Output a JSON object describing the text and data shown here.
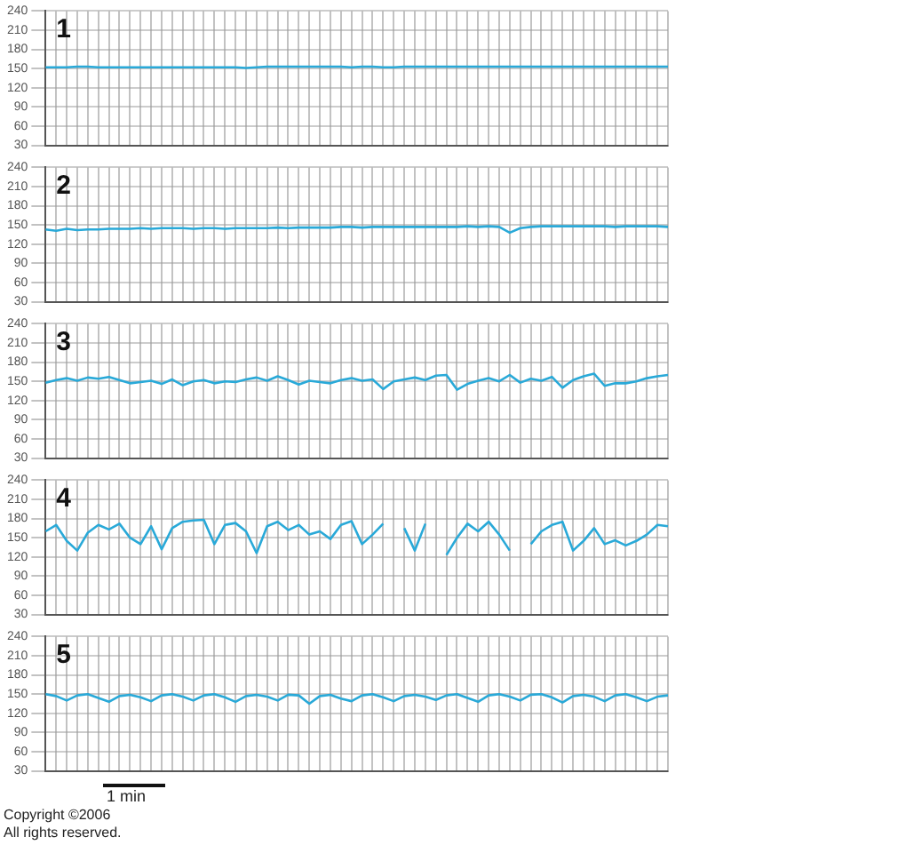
{
  "chart_data": [
    {
      "type": "line",
      "title": "1",
      "categories": [
        null,
        null,
        null,
        null,
        null,
        null,
        null,
        null,
        null,
        null,
        null,
        null,
        null,
        null,
        null,
        null,
        null,
        null,
        null,
        null,
        null,
        null,
        null,
        null,
        null,
        null,
        null,
        null,
        null,
        null,
        null,
        null,
        null,
        null,
        null,
        null,
        null,
        null,
        null,
        null,
        null,
        null,
        null,
        null,
        null,
        null,
        null,
        null,
        null,
        null,
        null,
        null,
        null,
        null,
        null,
        null,
        null,
        null,
        null,
        null
      ],
      "ylim": [
        30,
        240
      ],
      "yticks": [
        30,
        60,
        90,
        120,
        150,
        180,
        210,
        240
      ],
      "grid": true,
      "tick_labels": "y",
      "series": [
        {
          "color": "#29a9d8",
          "values": [
            152,
            152,
            152,
            153,
            153,
            152,
            152,
            152,
            152,
            152,
            152,
            152,
            152,
            152,
            152,
            152,
            152,
            152,
            152,
            151,
            152,
            153,
            153,
            153,
            153,
            153,
            153,
            153,
            153,
            152,
            153,
            153,
            152,
            152,
            153,
            153,
            153,
            153,
            153,
            153,
            153,
            153,
            153,
            153,
            153,
            153,
            153,
            153,
            153,
            153,
            153,
            153,
            153,
            153,
            153,
            153,
            153,
            153,
            153,
            153
          ]
        }
      ]
    },
    {
      "type": "line",
      "title": "2",
      "categories": [
        null,
        null,
        null,
        null,
        null,
        null,
        null,
        null,
        null,
        null,
        null,
        null,
        null,
        null,
        null,
        null,
        null,
        null,
        null,
        null,
        null,
        null,
        null,
        null,
        null,
        null,
        null,
        null,
        null,
        null,
        null,
        null,
        null,
        null,
        null,
        null,
        null,
        null,
        null,
        null,
        null,
        null,
        null,
        null,
        null,
        null,
        null,
        null,
        null,
        null,
        null,
        null,
        null,
        null,
        null,
        null,
        null,
        null,
        null,
        null
      ],
      "ylim": [
        30,
        240
      ],
      "yticks": [
        30,
        60,
        90,
        120,
        150,
        180,
        210,
        240
      ],
      "grid": true,
      "tick_labels": "y",
      "series": [
        {
          "color": "#29a9d8",
          "values": [
            143,
            141,
            144,
            142,
            143,
            143,
            144,
            144,
            144,
            145,
            144,
            145,
            145,
            145,
            144,
            145,
            145,
            144,
            145,
            145,
            145,
            145,
            146,
            145,
            146,
            146,
            146,
            146,
            147,
            147,
            146,
            147,
            147,
            147,
            147,
            147,
            147,
            147,
            147,
            147,
            148,
            147,
            148,
            147,
            138,
            145,
            147,
            148,
            148,
            148,
            148,
            148,
            148,
            148,
            147,
            148,
            148,
            148,
            148,
            147
          ]
        }
      ]
    },
    {
      "type": "line",
      "title": "3",
      "categories": [
        null,
        null,
        null,
        null,
        null,
        null,
        null,
        null,
        null,
        null,
        null,
        null,
        null,
        null,
        null,
        null,
        null,
        null,
        null,
        null,
        null,
        null,
        null,
        null,
        null,
        null,
        null,
        null,
        null,
        null,
        null,
        null,
        null,
        null,
        null,
        null,
        null,
        null,
        null,
        null,
        null,
        null,
        null,
        null,
        null,
        null,
        null,
        null,
        null,
        null,
        null,
        null,
        null,
        null,
        null,
        null,
        null,
        null,
        null,
        null
      ],
      "ylim": [
        30,
        240
      ],
      "yticks": [
        30,
        60,
        90,
        120,
        150,
        180,
        210,
        240
      ],
      "grid": true,
      "tick_labels": "y",
      "series": [
        {
          "color": "#29a9d8",
          "values": [
            148,
            152,
            155,
            151,
            156,
            154,
            157,
            152,
            147,
            149,
            151,
            146,
            153,
            144,
            150,
            152,
            147,
            150,
            149,
            153,
            156,
            151,
            158,
            152,
            145,
            151,
            149,
            147,
            152,
            155,
            151,
            153,
            138,
            150,
            153,
            156,
            152,
            159,
            160,
            137,
            146,
            151,
            155,
            150,
            160,
            148,
            154,
            151,
            157,
            140,
            152,
            158,
            162,
            143,
            147,
            147,
            150,
            155,
            158,
            160
          ]
        }
      ]
    },
    {
      "type": "line",
      "title": "4",
      "categories": [
        null,
        null,
        null,
        null,
        null,
        null,
        null,
        null,
        null,
        null,
        null,
        null,
        null,
        null,
        null,
        null,
        null,
        null,
        null,
        null,
        null,
        null,
        null,
        null,
        null,
        null,
        null,
        null,
        null,
        null,
        null,
        null,
        null,
        null,
        null,
        null,
        null,
        null,
        null,
        null,
        null,
        null,
        null,
        null,
        null,
        null,
        null,
        null,
        null,
        null,
        null,
        null,
        null,
        null,
        null,
        null,
        null,
        null,
        null,
        null
      ],
      "ylim": [
        30,
        240
      ],
      "yticks": [
        30,
        60,
        90,
        120,
        150,
        180,
        210,
        240
      ],
      "grid": true,
      "tick_labels": "y",
      "series": [
        {
          "color": "#29a9d8",
          "values": [
            160,
            170,
            145,
            130,
            158,
            170,
            163,
            172,
            150,
            140,
            168,
            132,
            165,
            175,
            177,
            178,
            140,
            170,
            173,
            160,
            126,
            168,
            175,
            162,
            170,
            155,
            160,
            148,
            170,
            176,
            140,
            155,
            172,
            null,
            165,
            130,
            172,
            null,
            123,
            150,
            172,
            160,
            175,
            155,
            130,
            null,
            140,
            160,
            170,
            175,
            130,
            145,
            165,
            140,
            146,
            138,
            145,
            155,
            170,
            168
          ]
        }
      ]
    },
    {
      "type": "line",
      "title": "5",
      "categories": [
        null,
        null,
        null,
        null,
        null,
        null,
        null,
        null,
        null,
        null,
        null,
        null,
        null,
        null,
        null,
        null,
        null,
        null,
        null,
        null,
        null,
        null,
        null,
        null,
        null,
        null,
        null,
        null,
        null,
        null,
        null,
        null,
        null,
        null,
        null,
        null,
        null,
        null,
        null,
        null,
        null,
        null,
        null,
        null,
        null,
        null,
        null,
        null,
        null,
        null,
        null,
        null,
        null,
        null,
        null,
        null,
        null,
        null,
        null,
        null
      ],
      "ylim": [
        30,
        240
      ],
      "yticks": [
        30,
        60,
        90,
        120,
        150,
        180,
        210,
        240
      ],
      "grid": true,
      "tick_labels": "y",
      "annotations": [
        "1 min",
        "Copyright ©2006",
        "All rights reserved."
      ],
      "series": [
        {
          "color": "#29a9d8",
          "values": [
            150,
            147,
            140,
            148,
            150,
            144,
            138,
            147,
            149,
            145,
            139,
            148,
            150,
            146,
            140,
            148,
            150,
            145,
            138,
            147,
            149,
            146,
            140,
            149,
            148,
            135,
            147,
            149,
            143,
            139,
            148,
            150,
            145,
            139,
            147,
            149,
            146,
            141,
            148,
            150,
            144,
            138,
            148,
            150,
            146,
            140,
            149,
            150,
            145,
            137,
            147,
            149,
            146,
            139,
            148,
            150,
            145,
            139,
            146,
            148
          ]
        }
      ]
    }
  ]
}
